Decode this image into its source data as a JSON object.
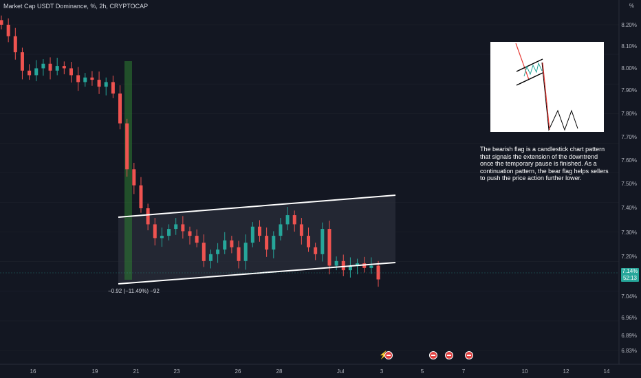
{
  "header": {
    "symbol_line": "Market Cap USDT Dominance, %, 2h, CRYPTOCAP"
  },
  "axis": {
    "unit_label": "%",
    "y_ticks": [
      "8.20%",
      "8.10%",
      "8.00%",
      "7.90%",
      "7.80%",
      "7.70%",
      "7.60%",
      "7.50%",
      "7.40%",
      "7.30%",
      "7.20%",
      "7.04%",
      "6.96%",
      "6.89%",
      "6.83%"
    ],
    "x_ticks": [
      "16",
      "19",
      "21",
      "23",
      "26",
      "28",
      "Jul",
      "3",
      "5",
      "7",
      "10",
      "12",
      "14"
    ]
  },
  "price_badge": {
    "value": "7.14%",
    "countdown": "52:13",
    "color": "#26a69a"
  },
  "measure_label": "−0.92 (−11.49%) −92",
  "description": "The bearish flag is a candlestick chart pattern that signals the extension of the downtrend once the temporary pause is finished. As a continuation pattern, the bear flag helps sellers to push the price action further lower.",
  "chart_data": {
    "type": "candlestick",
    "series": [
      {
        "name": "Market Cap USDT Dominance",
        "timeframe": "2h"
      }
    ],
    "y_unit": "%",
    "ylim": [
      6.83,
      8.25
    ],
    "close_approx": [
      8.25,
      8.2,
      8.13,
      8.05,
      8.03,
      8.06,
      8.08,
      8.05,
      8.07,
      8.06,
      8.03,
      8.0,
      8.02,
      8.01,
      7.98,
      8.0,
      7.95,
      7.82,
      7.62,
      7.55,
      7.45,
      7.38,
      7.32,
      7.33,
      7.36,
      7.38,
      7.35,
      7.33,
      7.3,
      7.22,
      7.25,
      7.27,
      7.31,
      7.28,
      7.22,
      7.3,
      7.37,
      7.33,
      7.27,
      7.33,
      7.38,
      7.42,
      7.38,
      7.33,
      7.28,
      7.25,
      7.36,
      7.2,
      7.22,
      7.18,
      7.2,
      7.21,
      7.19,
      7.2,
      7.14
    ],
    "last_value": 7.14,
    "annotations": [
      "bear flag parallel channel",
      "flagpole highlight",
      "measure −0.92 (−11.49%)"
    ]
  }
}
